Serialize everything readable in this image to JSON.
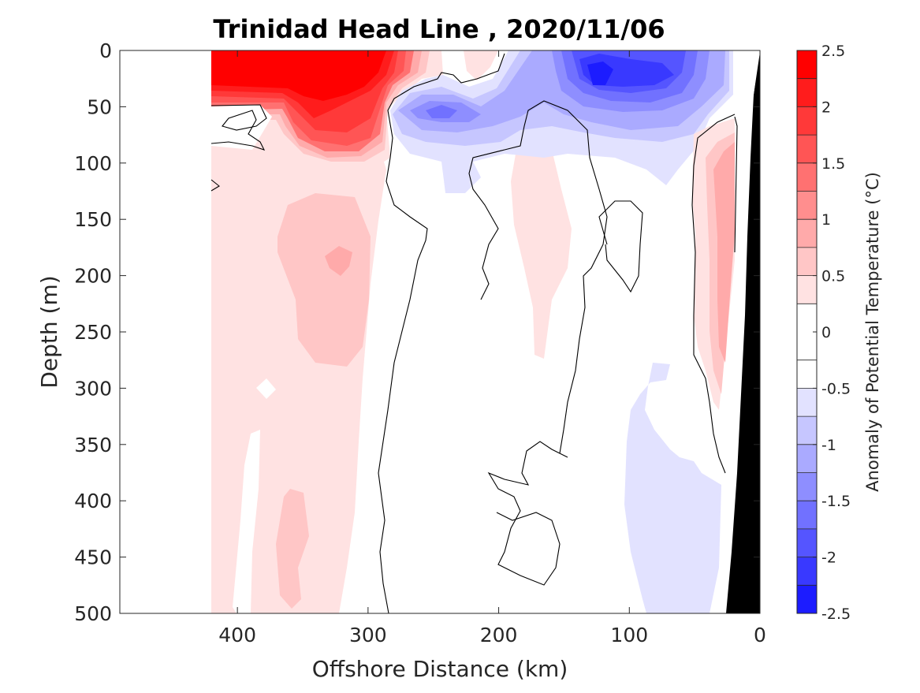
{
  "chart_data": {
    "type": "heatmap",
    "title": "Trinidad Head Line , 2020/11/06",
    "xlabel": "Offshore Distance (km)",
    "ylabel": "Depth (m)",
    "x_ticks": [
      "400",
      "300",
      "200",
      "100",
      "0"
    ],
    "x_tick_values": [
      400,
      300,
      200,
      100,
      0
    ],
    "xlim": [
      490,
      0
    ],
    "x_reversed": true,
    "y_ticks": [
      "0",
      "50",
      "100",
      "150",
      "200",
      "250",
      "300",
      "350",
      "400",
      "450",
      "500"
    ],
    "y_tick_values": [
      0,
      50,
      100,
      150,
      200,
      250,
      300,
      350,
      400,
      450,
      500
    ],
    "ylim": [
      0,
      500
    ],
    "y_reversed": true,
    "colorbar": {
      "label": "Anomaly of Potential Temperature (°C)",
      "ticks": [
        "2.5",
        "2",
        "1.5",
        "1",
        "0.5",
        "0",
        "-0.5",
        "-1",
        "-1.5",
        "-2",
        "-2.5"
      ],
      "tick_values": [
        2.5,
        2,
        1.5,
        1,
        0.5,
        0,
        -0.5,
        -1,
        -1.5,
        -2,
        -2.5
      ],
      "levels": [
        -2.5,
        -2.25,
        -2,
        -1.75,
        -1.5,
        -1.25,
        -1,
        -0.75,
        -0.5,
        -0.25,
        0.25,
        0.5,
        0.75,
        1,
        1.25,
        1.5,
        1.75,
        2,
        2.25,
        2.5
      ],
      "band_colors_top_to_bottom": [
        "#ff0000",
        "#ff1c1c",
        "#ff3939",
        "#ff5555",
        "#ff7171",
        "#ff8e8e",
        "#ffaaaa",
        "#ffc6c6",
        "#ffe2e2",
        "#ffffff",
        "#ffffff",
        "#e2e2ff",
        "#c6c6ff",
        "#aaaaff",
        "#8e8eff",
        "#7171ff",
        "#5555ff",
        "#3939ff",
        "#1c1cff",
        "#0000ff"
      ],
      "range": [
        -2.5,
        2.5
      ]
    },
    "data_extent_km": [
      420,
      20
    ],
    "features": [
      {
        "type": "warm_anomaly",
        "x_range_km": [
          420,
          290
        ],
        "depth_range_m": [
          0,
          40
        ],
        "value": 2.5
      },
      {
        "type": "warm_anomaly",
        "x_range_km": [
          345,
          305
        ],
        "depth_range_m": [
          40,
          95
        ],
        "value": 2.0
      },
      {
        "type": "warm_anomaly",
        "x_range_km": [
          420,
          285
        ],
        "depth_range_m": [
          100,
          500
        ],
        "value": 0.5
      },
      {
        "type": "warm_anomaly",
        "x_range_km": [
          375,
          315
        ],
        "depth_range_m": [
          140,
          280
        ],
        "value": 0.75
      },
      {
        "type": "warm_anomaly",
        "x_range_km": [
          195,
          150
        ],
        "depth_range_m": [
          100,
          270
        ],
        "value": 0.5
      },
      {
        "type": "warm_anomaly",
        "x_range_km": [
          40,
          20
        ],
        "depth_range_m": [
          80,
          320
        ],
        "value": 1.0
      },
      {
        "type": "cold_anomaly",
        "x_range_km": [
          155,
          50
        ],
        "depth_range_m": [
          0,
          110
        ],
        "value": -2.0
      },
      {
        "type": "cold_anomaly",
        "x_range_km": [
          265,
          205
        ],
        "depth_range_m": [
          35,
          125
        ],
        "value": -1.25
      },
      {
        "type": "cold_anomaly",
        "x_range_km": [
          100,
          35
        ],
        "depth_range_m": [
          300,
          500
        ],
        "value": -0.5
      }
    ],
    "bathymetry_color": "#000000",
    "contour_line": "zero anomaly",
    "grid": false
  }
}
